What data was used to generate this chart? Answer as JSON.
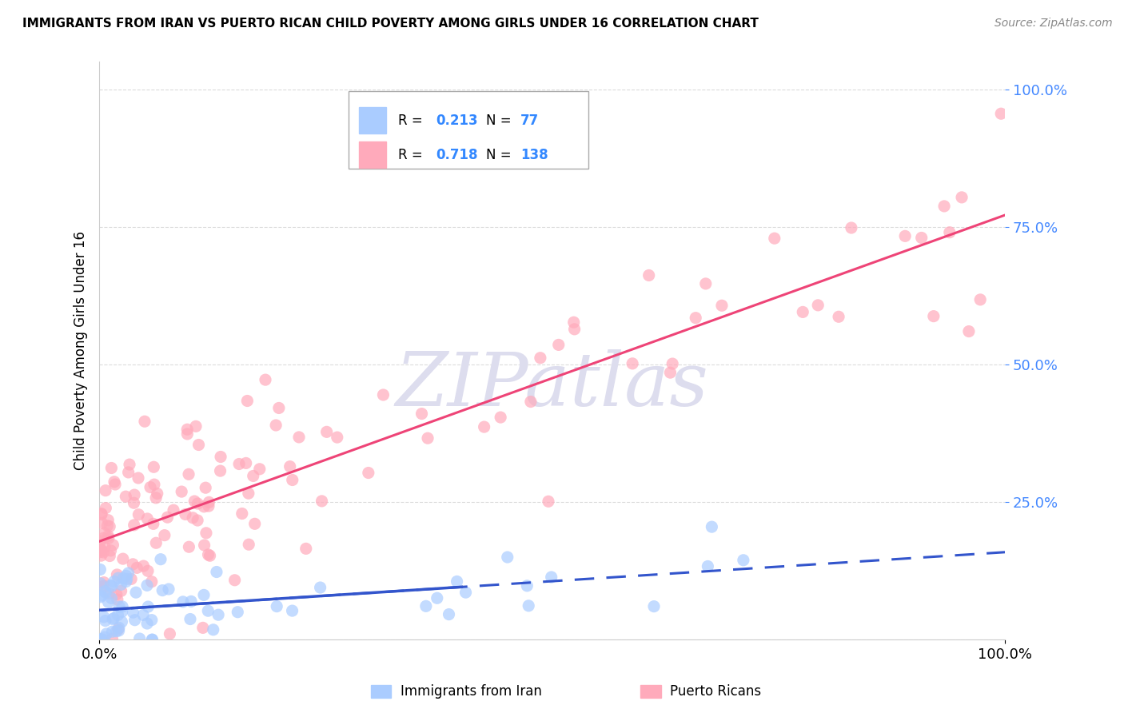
{
  "title": "IMMIGRANTS FROM IRAN VS PUERTO RICAN CHILD POVERTY AMONG GIRLS UNDER 16 CORRELATION CHART",
  "source": "Source: ZipAtlas.com",
  "ylabel": "Child Poverty Among Girls Under 16",
  "xlim": [
    0.0,
    1.0
  ],
  "ylim": [
    0.0,
    1.05
  ],
  "xtick_positions": [
    0.0,
    1.0
  ],
  "xtick_labels": [
    "0.0%",
    "100.0%"
  ],
  "ytick_positions": [
    0.25,
    0.5,
    0.75,
    1.0
  ],
  "ytick_labels": [
    "25.0%",
    "50.0%",
    "75.0%",
    "100.0%"
  ],
  "ytick_color": "#4488ff",
  "iran_color": "#aaccff",
  "puerto_rico_color": "#ffaabb",
  "iran_line_color": "#3355cc",
  "puerto_rico_line_color": "#ee4477",
  "iran_dash_color": "#88aadd",
  "watermark_text": "ZIPatlas",
  "watermark_color": "#ddddee",
  "legend_r1": "R = 0.213",
  "legend_n1": "N =  77",
  "legend_r2": "R = 0.718",
  "legend_n2": "N = 138",
  "legend_val_color": "#3388ff",
  "legend_label1": "Immigrants from Iran",
  "legend_label2": "Puerto Ricans",
  "grid_color": "#cccccc",
  "spine_color": "#cccccc",
  "iran_seed": 12,
  "pr_seed": 34
}
